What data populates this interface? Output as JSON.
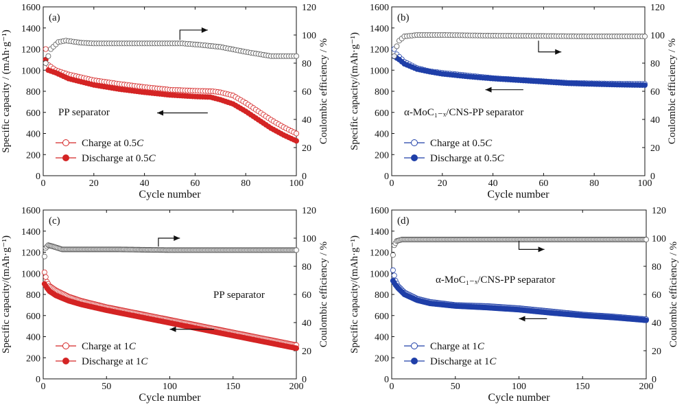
{
  "figure": {
    "charge_marker_label": "Charge at ",
    "discharge_marker_label": "Discharge at ",
    "colors": {
      "red": "#d42424",
      "blue": "#1f3fa8",
      "grey": "#555555"
    }
  },
  "chart_data": [
    {
      "id": "a",
      "type": "scatter",
      "panel_label": "(a)",
      "annotation": "PP separator",
      "xlabel": "Cycle number",
      "ylabel": "Specific capacity / (mAh·g⁻¹)",
      "y2label": "Coulombic efficiency / %",
      "xlim": [
        0,
        100
      ],
      "ylim": [
        0,
        1600
      ],
      "y2lim": [
        0,
        120
      ],
      "xticks": [
        0,
        20,
        40,
        60,
        80,
        100
      ],
      "yticks": [
        0,
        200,
        400,
        600,
        800,
        1000,
        1200,
        1400,
        1600
      ],
      "y2ticks": [
        0,
        20,
        40,
        60,
        80,
        100,
        120
      ],
      "rate": "0.5C",
      "legend": [
        "Charge at 0.5C",
        "Discharge at 0.5C"
      ],
      "series": [
        {
          "name": "Charge at 0.5C",
          "axis": "left",
          "color": "#d42424",
          "fill": "open",
          "points": [
            [
              1,
              1200
            ],
            [
              2,
              1050
            ],
            [
              5,
              1000
            ],
            [
              10,
              960
            ],
            [
              20,
              905
            ],
            [
              30,
              870
            ],
            [
              40,
              840
            ],
            [
              50,
              815
            ],
            [
              60,
              805
            ],
            [
              67,
              800
            ],
            [
              70,
              790
            ],
            [
              75,
              760
            ],
            [
              80,
              690
            ],
            [
              85,
              610
            ],
            [
              90,
              530
            ],
            [
              95,
              460
            ],
            [
              100,
              400
            ]
          ]
        },
        {
          "name": "Discharge at 0.5C",
          "axis": "left",
          "color": "#d42424",
          "fill": "filled",
          "points": [
            [
              1,
              1100
            ],
            [
              2,
              1000
            ],
            [
              5,
              975
            ],
            [
              10,
              920
            ],
            [
              20,
              860
            ],
            [
              30,
              820
            ],
            [
              40,
              790
            ],
            [
              50,
              765
            ],
            [
              60,
              750
            ],
            [
              66,
              745
            ],
            [
              70,
              720
            ],
            [
              75,
              680
            ],
            [
              80,
              610
            ],
            [
              85,
              530
            ],
            [
              90,
              450
            ],
            [
              95,
              385
            ],
            [
              100,
              330
            ]
          ]
        },
        {
          "name": "Coulombic efficiency",
          "axis": "right",
          "color": "#555555",
          "fill": "open",
          "points": [
            [
              1,
              80
            ],
            [
              3,
              90
            ],
            [
              6,
              95
            ],
            [
              9,
              96
            ],
            [
              15,
              94.5
            ],
            [
              20,
              94
            ],
            [
              40,
              94
            ],
            [
              55,
              94
            ],
            [
              62,
              93
            ],
            [
              70,
              91.5
            ],
            [
              80,
              88
            ],
            [
              90,
              85
            ],
            [
              100,
              85
            ]
          ]
        }
      ],
      "arrows": [
        {
          "direction": "right",
          "from": [
            54,
            96.5
          ],
          "to": [
            65,
            103.5
          ],
          "axis": "right"
        },
        {
          "direction": "left",
          "from": [
            65,
            595
          ],
          "to": [
            45,
            595
          ],
          "axis": "left"
        }
      ]
    },
    {
      "id": "b",
      "type": "scatter",
      "panel_label": "(b)",
      "annotation": "α-MoC₁₋ₓ/CNS-PP separator",
      "xlabel": "Cycle number",
      "ylabel": "Specific capacity/(mAh·g⁻¹)",
      "y2label": "Coulombic efficiency / %",
      "xlim": [
        0,
        100
      ],
      "ylim": [
        0,
        1600
      ],
      "y2lim": [
        0,
        120
      ],
      "xticks": [
        0,
        20,
        40,
        60,
        80,
        100
      ],
      "yticks": [
        0,
        200,
        400,
        600,
        800,
        1000,
        1200,
        1400,
        1600
      ],
      "y2ticks": [
        0,
        20,
        40,
        60,
        80,
        100,
        120
      ],
      "rate": "0.5C",
      "legend": [
        "Charge at 0.5C",
        "Discharge at 0.5C"
      ],
      "series": [
        {
          "name": "Charge at 0.5C",
          "axis": "left",
          "color": "#1f3fa8",
          "fill": "open",
          "points": [
            [
              1,
              1200
            ],
            [
              2,
              1150
            ],
            [
              5,
              1080
            ],
            [
              10,
              1020
            ],
            [
              15,
              990
            ],
            [
              20,
              975
            ],
            [
              30,
              950
            ],
            [
              40,
              925
            ],
            [
              50,
              910
            ],
            [
              60,
              895
            ],
            [
              70,
              880
            ],
            [
              80,
              875
            ],
            [
              90,
              872
            ],
            [
              100,
              870
            ]
          ]
        },
        {
          "name": "Discharge at 0.5C",
          "axis": "left",
          "color": "#1f3fa8",
          "fill": "filled",
          "points": [
            [
              1,
              1130
            ],
            [
              3,
              1100
            ],
            [
              5,
              1060
            ],
            [
              10,
              1010
            ],
            [
              15,
              985
            ],
            [
              20,
              965
            ],
            [
              30,
              940
            ],
            [
              40,
              920
            ],
            [
              50,
              905
            ],
            [
              60,
              890
            ],
            [
              70,
              875
            ],
            [
              80,
              868
            ],
            [
              90,
              862
            ],
            [
              100,
              858
            ]
          ]
        },
        {
          "name": "Coulombic efficiency",
          "axis": "right",
          "color": "#555555",
          "fill": "open",
          "points": [
            [
              1,
              85
            ],
            [
              2,
              92
            ],
            [
              3,
              96
            ],
            [
              5,
              99
            ],
            [
              10,
              100
            ],
            [
              20,
              100
            ],
            [
              40,
              99.5
            ],
            [
              60,
              99.3
            ],
            [
              80,
              99
            ],
            [
              100,
              99
            ]
          ]
        }
      ],
      "arrows": [
        {
          "direction": "right",
          "from": [
            58,
            96
          ],
          "to": [
            67,
            88
          ],
          "axis": "right"
        },
        {
          "direction": "left",
          "from": [
            52,
            815
          ],
          "to": [
            37,
            815
          ],
          "axis": "left"
        }
      ]
    },
    {
      "id": "c",
      "type": "scatter",
      "panel_label": "(c)",
      "annotation": "PP separator",
      "xlabel": "Cycle number",
      "ylabel": "Specific capacity/(mAh·g⁻¹)",
      "y2label": "Coulombic efficiency / %",
      "xlim": [
        0,
        200
      ],
      "ylim": [
        0,
        1600
      ],
      "y2lim": [
        0,
        120
      ],
      "xticks": [
        0,
        50,
        100,
        150,
        200
      ],
      "yticks": [
        0,
        200,
        400,
        600,
        800,
        1000,
        1200,
        1400,
        1600
      ],
      "y2ticks": [
        0,
        20,
        40,
        60,
        80,
        100,
        120
      ],
      "rate": "1C",
      "legend": [
        "Charge at 1C",
        "Discharge at 1C"
      ],
      "series": [
        {
          "name": "Charge at 1C",
          "axis": "left",
          "color": "#d42424",
          "fill": "open",
          "points": [
            [
              1,
              1010
            ],
            [
              3,
              920
            ],
            [
              5,
              880
            ],
            [
              10,
              840
            ],
            [
              20,
              780
            ],
            [
              30,
              740
            ],
            [
              50,
              680
            ],
            [
              75,
              620
            ],
            [
              100,
              560
            ],
            [
              125,
              500
            ],
            [
              150,
              440
            ],
            [
              175,
              380
            ],
            [
              200,
              320
            ]
          ]
        },
        {
          "name": "Discharge at 1C",
          "axis": "left",
          "color": "#d42424",
          "fill": "filled",
          "points": [
            [
              1,
              900
            ],
            [
              3,
              860
            ],
            [
              5,
              830
            ],
            [
              10,
              790
            ],
            [
              20,
              740
            ],
            [
              30,
              705
            ],
            [
              50,
              650
            ],
            [
              75,
              590
            ],
            [
              100,
              530
            ],
            [
              125,
              470
            ],
            [
              150,
              410
            ],
            [
              175,
              350
            ],
            [
              200,
              290
            ]
          ]
        },
        {
          "name": "Coulombic efficiency",
          "axis": "right",
          "color": "#555555",
          "fill": "open",
          "points": [
            [
              1,
              87
            ],
            [
              2,
              93
            ],
            [
              4,
              95
            ],
            [
              8,
              94
            ],
            [
              15,
              92
            ],
            [
              30,
              92
            ],
            [
              60,
              92
            ],
            [
              100,
              91.5
            ],
            [
              150,
              91.5
            ],
            [
              200,
              91.5
            ]
          ]
        }
      ],
      "arrows": [
        {
          "direction": "right",
          "from": [
            91,
            94
          ],
          "to": [
            108,
            100
          ],
          "axis": "right"
        },
        {
          "direction": "left",
          "from": [
            135,
            470
          ],
          "to": [
            100,
            470
          ],
          "axis": "left"
        }
      ]
    },
    {
      "id": "d",
      "type": "scatter",
      "panel_label": "(d)",
      "annotation": "α-MoC₁₋ₓ/CNS-PP separator",
      "xlabel": "Cycle number",
      "ylabel": "Specific capacity/(mAh·g⁻¹)",
      "y2label": "Coulombic efficiency / %",
      "xlim": [
        0,
        200
      ],
      "ylim": [
        0,
        1600
      ],
      "y2lim": [
        0,
        120
      ],
      "xticks": [
        0,
        50,
        100,
        150,
        200
      ],
      "yticks": [
        0,
        200,
        400,
        600,
        800,
        1000,
        1200,
        1400,
        1600
      ],
      "y2ticks": [
        0,
        20,
        40,
        60,
        80,
        100,
        120
      ],
      "rate": "1C",
      "legend": [
        "Charge at 1C",
        "Discharge at 1C"
      ],
      "series": [
        {
          "name": "Charge at 1C",
          "axis": "left",
          "color": "#1f3fa8",
          "fill": "open",
          "points": [
            [
              1,
              1030
            ],
            [
              3,
              930
            ],
            [
              5,
              880
            ],
            [
              10,
              820
            ],
            [
              20,
              760
            ],
            [
              30,
              730
            ],
            [
              50,
              700
            ],
            [
              75,
              690
            ],
            [
              100,
              670
            ],
            [
              125,
              640
            ],
            [
              150,
              610
            ],
            [
              175,
              590
            ],
            [
              200,
              565
            ]
          ]
        },
        {
          "name": "Discharge at 1C",
          "axis": "left",
          "color": "#1f3fa8",
          "fill": "filled",
          "points": [
            [
              1,
              930
            ],
            [
              3,
              890
            ],
            [
              5,
              860
            ],
            [
              10,
              800
            ],
            [
              20,
              745
            ],
            [
              30,
              715
            ],
            [
              50,
              690
            ],
            [
              75,
              675
            ],
            [
              100,
              655
            ],
            [
              125,
              625
            ],
            [
              150,
              600
            ],
            [
              175,
              580
            ],
            [
              200,
              555
            ]
          ]
        },
        {
          "name": "Coulombic efficiency",
          "axis": "right",
          "color": "#555555",
          "fill": "open",
          "points": [
            [
              1,
              88
            ],
            [
              2,
              95
            ],
            [
              4,
              98
            ],
            [
              8,
              99
            ],
            [
              20,
              99
            ],
            [
              50,
              99
            ],
            [
              100,
              99
            ],
            [
              150,
              99
            ],
            [
              200,
              99
            ]
          ]
        }
      ],
      "arrows": [
        {
          "direction": "right",
          "from": [
            100,
            98
          ],
          "to": [
            120,
            92
          ],
          "axis": "right"
        },
        {
          "direction": "left",
          "from": [
            122,
            570
          ],
          "to": [
            100,
            570
          ],
          "axis": "left"
        }
      ]
    }
  ]
}
